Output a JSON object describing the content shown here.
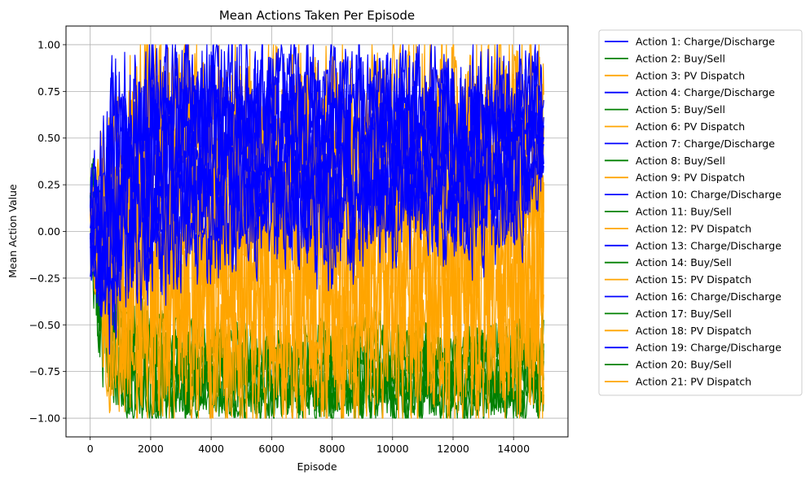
{
  "chart_data": {
    "type": "line",
    "title": "Mean Actions Taken Per Episode",
    "xlabel": "Episode",
    "ylabel": "Mean Action Value",
    "xlim": [
      -800,
      15800
    ],
    "ylim": [
      -1.1,
      1.1
    ],
    "xticks": [
      0,
      2000,
      4000,
      6000,
      8000,
      10000,
      12000,
      14000
    ],
    "xtick_labels": [
      "0",
      "2000",
      "4000",
      "6000",
      "8000",
      "10000",
      "12000",
      "14000"
    ],
    "yticks": [
      -1.0,
      -0.75,
      -0.5,
      -0.25,
      0.0,
      0.25,
      0.5,
      0.75,
      1.0
    ],
    "ytick_labels": [
      "−1.00",
      "−0.75",
      "−0.50",
      "−0.25",
      "0.00",
      "0.25",
      "0.50",
      "0.75",
      "1.00"
    ],
    "grid": true,
    "legend_position": "outside-right",
    "episodes": 15000,
    "colors": {
      "Charge/Discharge": "#0000ff",
      "Buy/Sell": "#008000",
      "PV Dispatch": "#ffa500"
    },
    "series_envelopes": {
      "Buy/Sell": {
        "x": [
          0,
          200,
          500,
          1000,
          2000,
          3000,
          4000,
          6000,
          8000,
          10000,
          12000,
          14000,
          15000
        ],
        "low": [
          -0.2,
          -0.5,
          -0.85,
          -0.97,
          -1.0,
          -1.0,
          -1.0,
          -1.0,
          -1.0,
          -1.0,
          -1.0,
          -1.0,
          -1.0
        ],
        "high": [
          0.35,
          0.45,
          -0.1,
          -0.3,
          -0.45,
          -0.5,
          -0.5,
          -0.55,
          -0.5,
          -0.5,
          -0.55,
          -0.5,
          -0.45
        ]
      },
      "PV Dispatch": {
        "x": [
          0,
          200,
          500,
          1000,
          2000,
          3000,
          4000,
          6000,
          8000,
          10000,
          12000,
          14000,
          15000
        ],
        "low": [
          -0.1,
          -0.45,
          -0.85,
          -0.95,
          -0.98,
          -0.98,
          -0.98,
          -0.98,
          -0.98,
          -0.98,
          -0.98,
          -0.98,
          -0.95
        ],
        "high": [
          0.3,
          0.3,
          0.55,
          0.85,
          1.0,
          0.95,
          0.9,
          0.95,
          0.9,
          0.9,
          1.0,
          1.0,
          0.9
        ]
      },
      "Charge/Discharge": {
        "x": [
          0,
          200,
          500,
          1000,
          2000,
          3000,
          4000,
          6000,
          8000,
          10000,
          12000,
          14000,
          15000
        ],
        "low": [
          -0.35,
          -0.45,
          -0.7,
          -0.35,
          -0.3,
          -0.2,
          -0.15,
          -0.1,
          -0.2,
          -0.1,
          -0.1,
          -0.1,
          0.2
        ],
        "high": [
          0.3,
          0.4,
          0.75,
          0.9,
          1.0,
          1.0,
          0.95,
          0.95,
          0.95,
          0.95,
          0.9,
          0.95,
          0.93
        ]
      }
    },
    "series": [
      {
        "name": "Action 1: Charge/Discharge",
        "group": "Charge/Discharge"
      },
      {
        "name": "Action 2: Buy/Sell",
        "group": "Buy/Sell"
      },
      {
        "name": "Action 3: PV Dispatch",
        "group": "PV Dispatch"
      },
      {
        "name": "Action 4: Charge/Discharge",
        "group": "Charge/Discharge"
      },
      {
        "name": "Action 5: Buy/Sell",
        "group": "Buy/Sell"
      },
      {
        "name": "Action 6: PV Dispatch",
        "group": "PV Dispatch"
      },
      {
        "name": "Action 7: Charge/Discharge",
        "group": "Charge/Discharge"
      },
      {
        "name": "Action 8: Buy/Sell",
        "group": "Buy/Sell"
      },
      {
        "name": "Action 9: PV Dispatch",
        "group": "PV Dispatch"
      },
      {
        "name": "Action 10: Charge/Discharge",
        "group": "Charge/Discharge"
      },
      {
        "name": "Action 11: Buy/Sell",
        "group": "Buy/Sell"
      },
      {
        "name": "Action 12: PV Dispatch",
        "group": "PV Dispatch"
      },
      {
        "name": "Action 13: Charge/Discharge",
        "group": "Charge/Discharge"
      },
      {
        "name": "Action 14: Buy/Sell",
        "group": "Buy/Sell"
      },
      {
        "name": "Action 15: PV Dispatch",
        "group": "PV Dispatch"
      },
      {
        "name": "Action 16: Charge/Discharge",
        "group": "Charge/Discharge"
      },
      {
        "name": "Action 17: Buy/Sell",
        "group": "Buy/Sell"
      },
      {
        "name": "Action 18: PV Dispatch",
        "group": "PV Dispatch"
      },
      {
        "name": "Action 19: Charge/Discharge",
        "group": "Charge/Discharge"
      },
      {
        "name": "Action 20: Buy/Sell",
        "group": "Buy/Sell"
      },
      {
        "name": "Action 21: PV Dispatch",
        "group": "PV Dispatch"
      }
    ]
  }
}
